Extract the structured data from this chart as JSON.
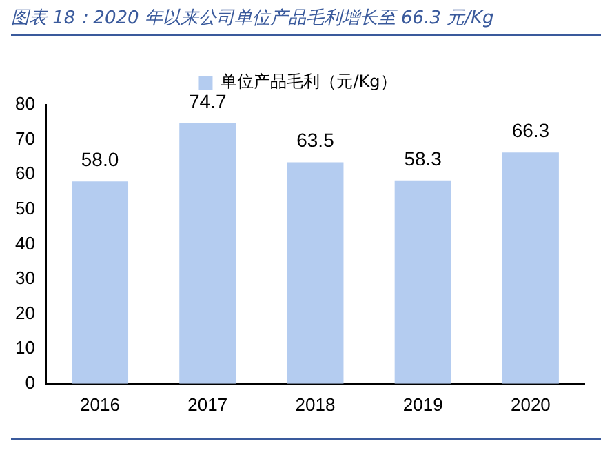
{
  "chart_data": {
    "type": "bar",
    "title": "图表 18：2020 年以来公司单位产品毛利增长至 66.3 元/Kg",
    "categories": [
      "2016",
      "2017",
      "2018",
      "2019",
      "2020"
    ],
    "series": [
      {
        "name": "单位产品毛利（元/Kg）",
        "color": "#b4ccf0",
        "values": [
          58.0,
          74.7,
          63.5,
          58.3,
          66.3
        ],
        "value_labels": [
          "58.0",
          "74.7",
          "63.5",
          "58.3",
          "66.3"
        ]
      }
    ],
    "ylim": [
      0,
      80
    ],
    "yticks": [
      0,
      10,
      20,
      30,
      40,
      50,
      60,
      70,
      80
    ],
    "grid": false,
    "legend": "top"
  }
}
